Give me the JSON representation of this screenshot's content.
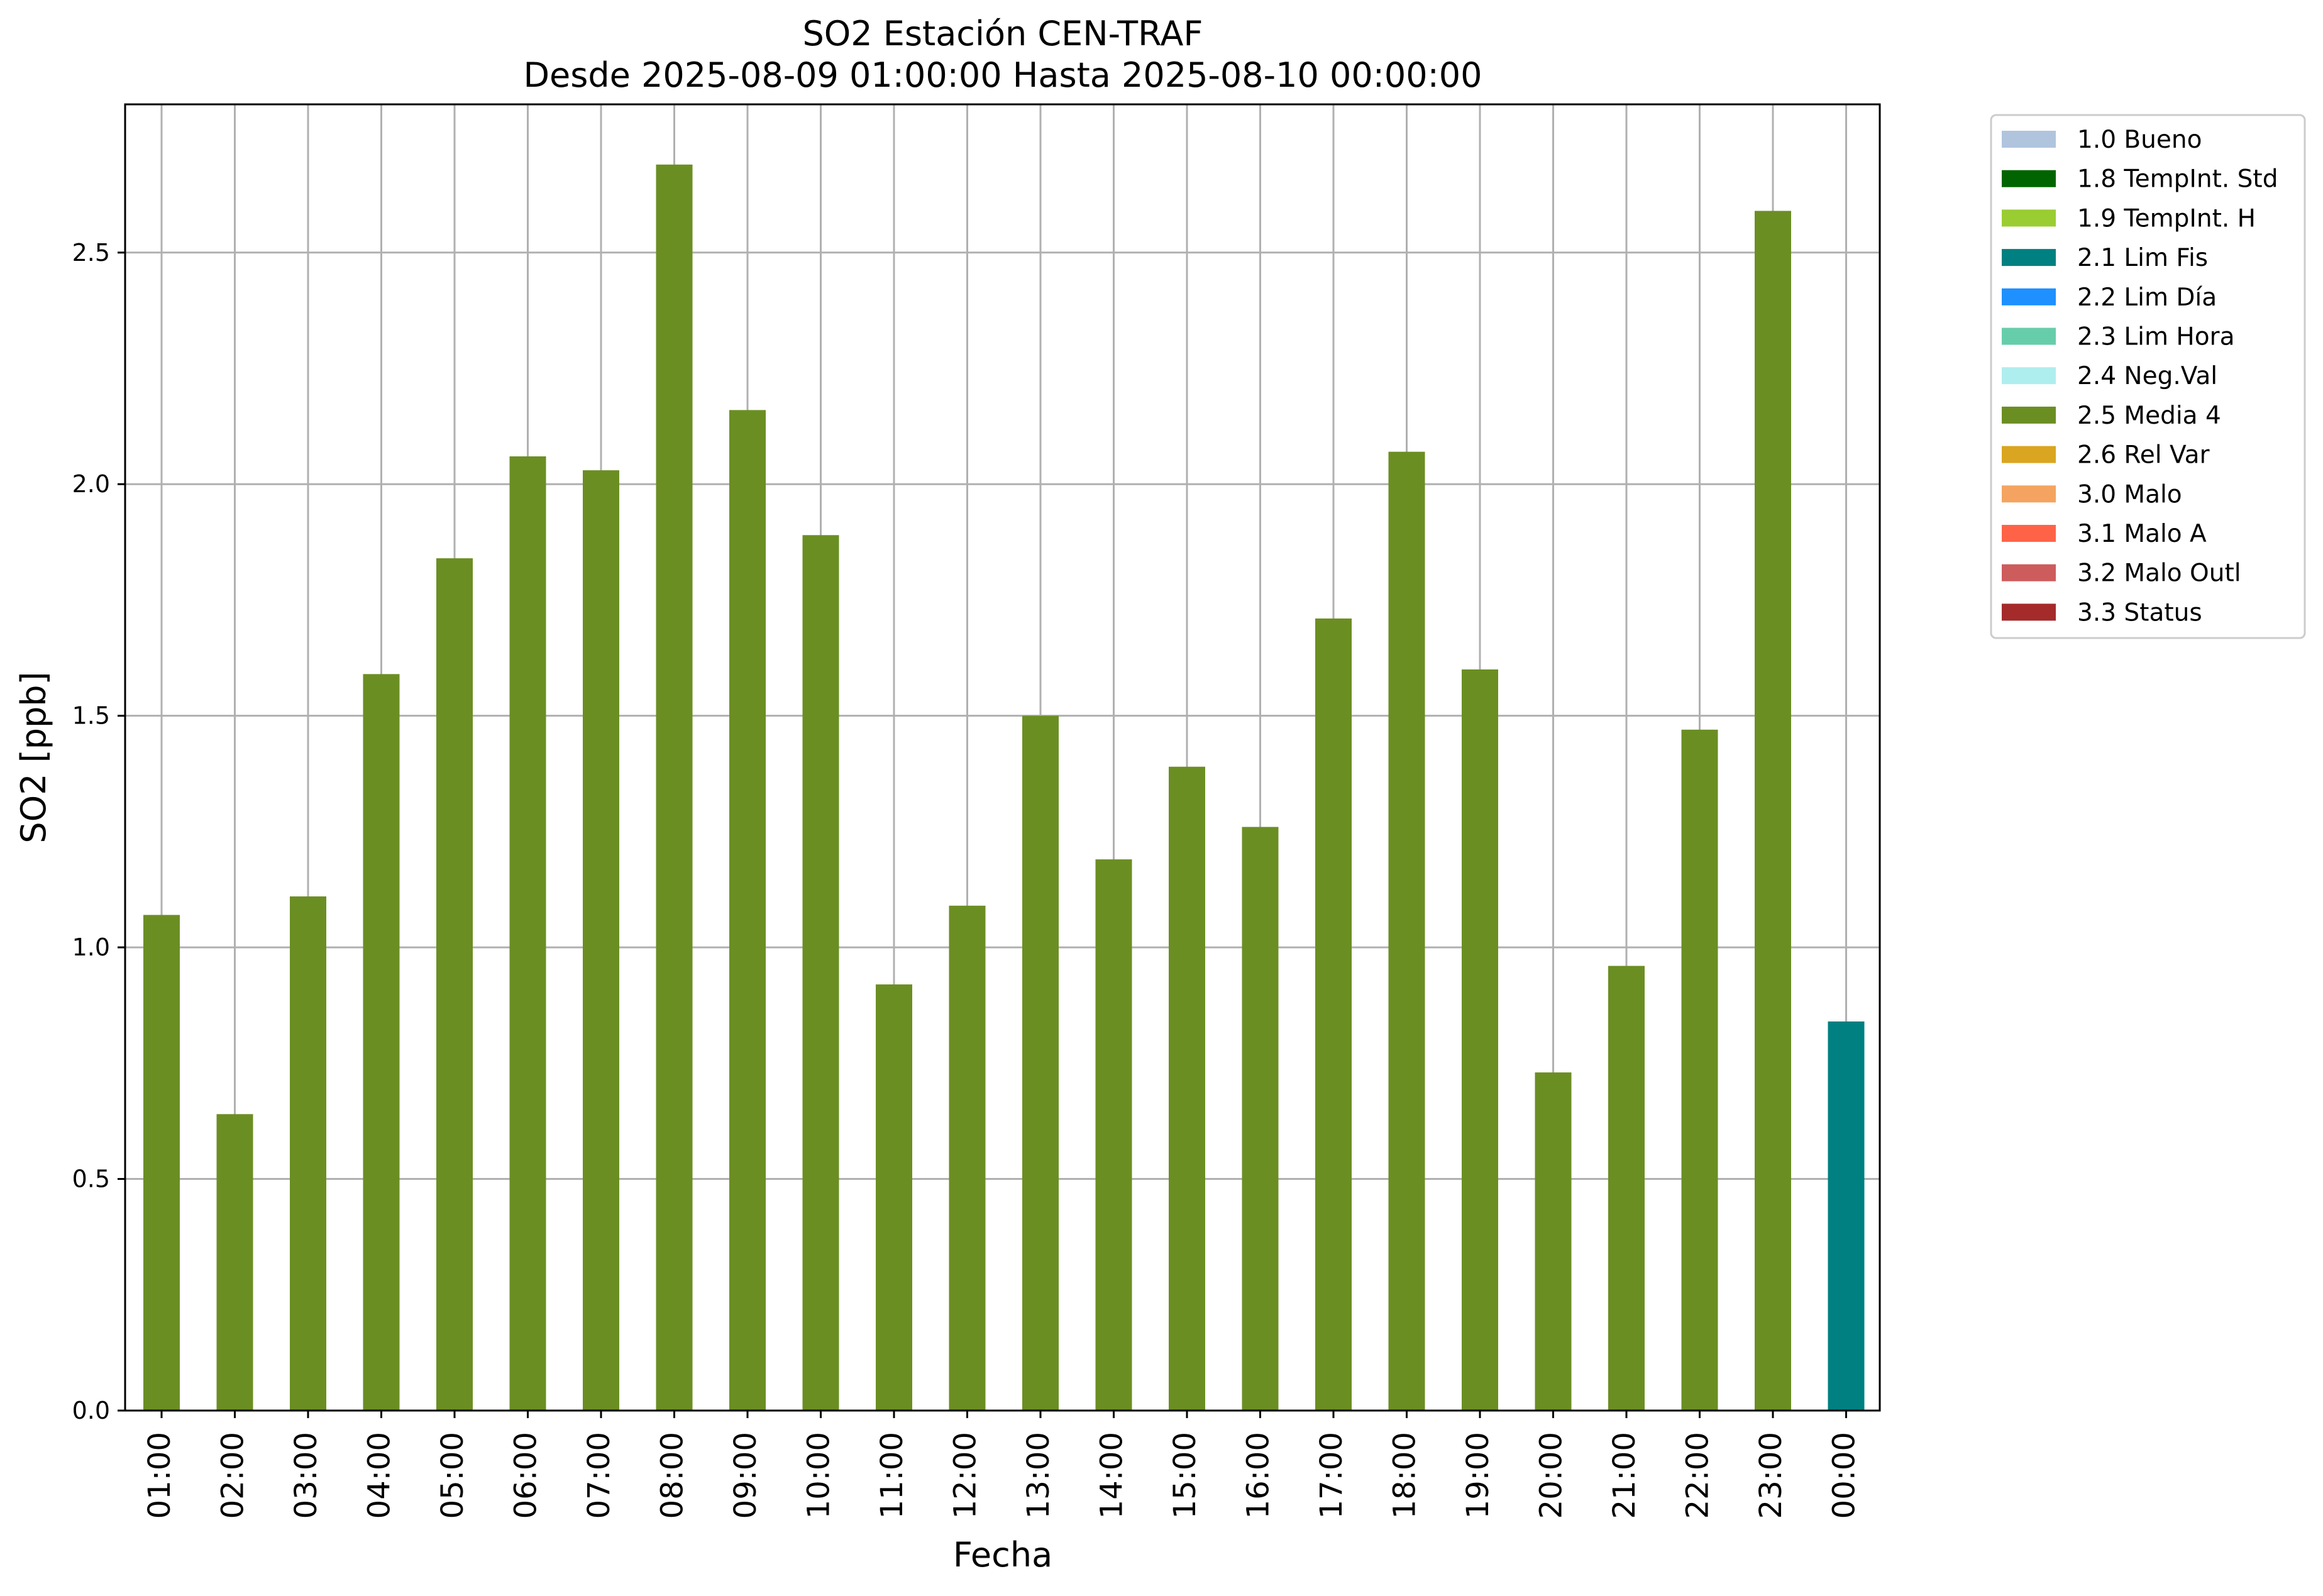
{
  "chart_data": {
    "type": "bar",
    "title": "SO2 Estación CEN-TRAF",
    "subtitle": "Desde 2025-08-09 01:00:00 Hasta 2025-08-10 00:00:00",
    "xlabel": "Fecha",
    "ylabel": "SO2 [ppb]",
    "ylim": [
      0,
      2.82
    ],
    "yticks": [
      "0.0",
      "0.5",
      "1.0",
      "1.5",
      "2.0",
      "2.5"
    ],
    "grid": true,
    "legend_position": "outside-right-top",
    "categories": [
      "01:00",
      "02:00",
      "03:00",
      "04:00",
      "05:00",
      "06:00",
      "07:00",
      "08:00",
      "09:00",
      "10:00",
      "11:00",
      "12:00",
      "13:00",
      "14:00",
      "15:00",
      "16:00",
      "17:00",
      "18:00",
      "19:00",
      "20:00",
      "21:00",
      "22:00",
      "23:00",
      "00:00"
    ],
    "values": [
      1.07,
      0.64,
      1.11,
      1.59,
      1.84,
      2.06,
      2.03,
      2.69,
      2.16,
      1.89,
      0.92,
      1.09,
      1.5,
      1.19,
      1.39,
      1.26,
      1.71,
      2.07,
      1.6,
      0.73,
      0.96,
      1.47,
      2.59,
      0.84
    ],
    "bar_flags": [
      "2.5 Media 4",
      "2.5 Media 4",
      "2.5 Media 4",
      "2.5 Media 4",
      "2.5 Media 4",
      "2.5 Media 4",
      "2.5 Media 4",
      "2.5 Media 4",
      "2.5 Media 4",
      "2.5 Media 4",
      "2.5 Media 4",
      "2.5 Media 4",
      "2.5 Media 4",
      "2.5 Media 4",
      "2.5 Media 4",
      "2.5 Media 4",
      "2.5 Media 4",
      "2.5 Media 4",
      "2.5 Media 4",
      "2.5 Media 4",
      "2.5 Media 4",
      "2.5 Media 4",
      "2.5 Media 4",
      "2.1 Lim Fis"
    ],
    "legend": [
      {
        "label": "1.0 Bueno",
        "color": "#b0c4de"
      },
      {
        "label": "1.8 TempInt. Std",
        "color": "#006400"
      },
      {
        "label": "1.9 TempInt. H",
        "color": "#9acd32"
      },
      {
        "label": "2.1 Lim Fis",
        "color": "#008080"
      },
      {
        "label": "2.2 Lim Día",
        "color": "#1e90ff"
      },
      {
        "label": "2.3 Lim Hora",
        "color": "#66cdaa"
      },
      {
        "label": "2.4 Neg.Val",
        "color": "#afeeee"
      },
      {
        "label": "2.5 Media 4",
        "color": "#6b8e23"
      },
      {
        "label": "2.6 Rel Var",
        "color": "#daa520"
      },
      {
        "label": "3.0 Malo",
        "color": "#f4a460"
      },
      {
        "label": "3.1 Malo A",
        "color": "#ff6347"
      },
      {
        "label": "3.2 Malo Outl",
        "color": "#cd5c5c"
      },
      {
        "label": "3.3 Status",
        "color": "#a52a2a"
      }
    ]
  }
}
